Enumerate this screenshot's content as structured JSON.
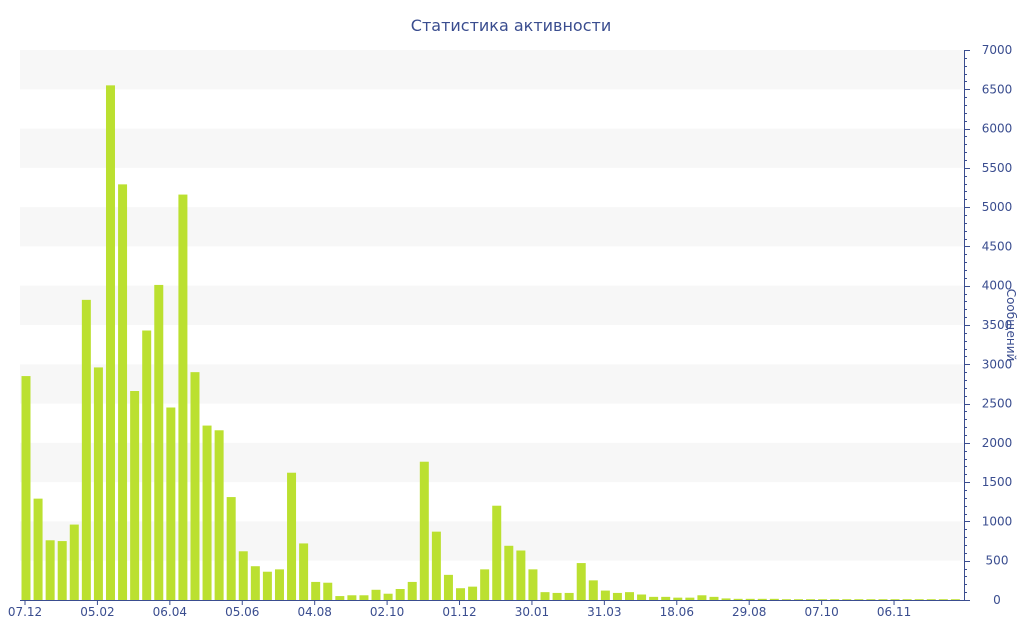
{
  "chart_data": {
    "type": "bar",
    "title": "Статистика активности",
    "xlabel": "",
    "ylabel": "Сообщений",
    "y_axis_side": "right",
    "ylim": [
      0,
      7000
    ],
    "y_ticks": [
      0,
      500,
      1000,
      1500,
      2000,
      2500,
      3000,
      3500,
      4000,
      4500,
      5000,
      5500,
      6000,
      6500,
      7000
    ],
    "x_tick_labels": [
      {
        "index": 0,
        "label": "07.12"
      },
      {
        "index": 6,
        "label": "05.02"
      },
      {
        "index": 12,
        "label": "06.04"
      },
      {
        "index": 18,
        "label": "05.06"
      },
      {
        "index": 24,
        "label": "04.08"
      },
      {
        "index": 30,
        "label": "02.10"
      },
      {
        "index": 36,
        "label": "01.12"
      },
      {
        "index": 42,
        "label": "30.01"
      },
      {
        "index": 48,
        "label": "31.03"
      },
      {
        "index": 54,
        "label": "18.06"
      },
      {
        "index": 60,
        "label": "29.08"
      },
      {
        "index": 66,
        "label": "07.10"
      },
      {
        "index": 72,
        "label": "06.11"
      }
    ],
    "values": [
      2850,
      1290,
      760,
      750,
      960,
      3820,
      2960,
      6550,
      5290,
      2660,
      3430,
      4010,
      2450,
      5160,
      2900,
      2220,
      2160,
      1310,
      620,
      430,
      360,
      390,
      1620,
      720,
      230,
      220,
      50,
      60,
      60,
      130,
      80,
      140,
      230,
      1760,
      870,
      320,
      150,
      170,
      390,
      1200,
      690,
      630,
      390,
      100,
      90,
      90,
      470,
      250,
      120,
      90,
      100,
      70,
      40,
      40,
      30,
      30,
      60,
      40,
      20,
      15,
      15,
      15,
      15,
      10,
      10,
      10,
      10,
      10,
      10,
      10,
      10,
      10,
      10,
      10,
      10,
      10,
      10,
      10
    ],
    "colors": {
      "bar": "#bbe030",
      "band": "#f7f7f7",
      "axis": "#3a4d8f",
      "text": "#3a4d8f"
    },
    "grid": "alternating-horizontal-bands"
  }
}
